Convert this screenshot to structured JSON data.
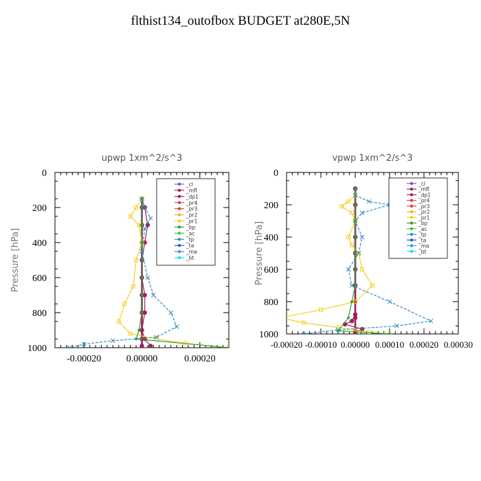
{
  "figure_title": "flthist134_outofbox  BUDGET at280E,5N",
  "colors": {
    "_cl": "#7f4fbf",
    "_mfl": "#a0205f",
    "_dp1": "#a0205f",
    "_pr4": "#e0404f",
    "_pr3": "#e0404f",
    "_pr2": "#f0b030",
    "_pr1": "#f5d020",
    "_bp": "#30a030",
    "_ac": "#30d030",
    "_tp": "#2f8fbf",
    "_ta": "#3050e0",
    "_ma": "#30a0d0",
    "_bt": "#20e0e0"
  },
  "chart_data": [
    {
      "type": "line",
      "title": "upwp   1xm^2/s^3",
      "ylabel": "Pressure [hPa]",
      "xlabel": "",
      "ylim": [
        1000,
        0
      ],
      "xlim": [
        -0.0003,
        0.0003
      ],
      "yticks": [
        "0",
        "200",
        "400",
        "600",
        "800",
        "1000"
      ],
      "xticks": [
        "-0.00020",
        "0.00000",
        "0.00020"
      ],
      "legend": [
        "_cl",
        "_mfl",
        "_dp1",
        "_pr4",
        "_pr3",
        "_pr2",
        "_pr1",
        "_bp",
        "_ac",
        "_tp",
        "_ta",
        "_ma",
        "_bt"
      ],
      "legend_position": "top-right",
      "series": [
        {
          "name": "_cl",
          "x": [
            0,
            0,
            0,
            0,
            0,
            0,
            0,
            0,
            0,
            0,
            0
          ],
          "y": [
            150,
            200,
            300,
            400,
            500,
            600,
            700,
            800,
            900,
            950,
            990
          ]
        },
        {
          "name": "_mfl",
          "x": [
            0,
            0,
            0,
            0,
            0,
            0,
            0,
            0,
            0,
            0,
            0
          ],
          "y": [
            150,
            200,
            300,
            400,
            500,
            600,
            700,
            800,
            900,
            950,
            990
          ]
        },
        {
          "name": "_dp1",
          "x": [
            0,
            1e-05,
            2e-05,
            1e-05,
            0,
            0,
            1e-05,
            1e-05,
            0,
            1e-05,
            3e-05
          ],
          "y": [
            150,
            200,
            300,
            400,
            500,
            600,
            700,
            800,
            900,
            950,
            990
          ]
        },
        {
          "name": "_pr1",
          "x": [
            0,
            -2e-05,
            -4e-05,
            -1e-05,
            0,
            -2e-05,
            -3e-05,
            -6e-05,
            -8e-05,
            -4e-05,
            5e-05,
            0.00015,
            0.0003
          ],
          "y": [
            150,
            200,
            250,
            300,
            400,
            500,
            650,
            750,
            850,
            920,
            950,
            975,
            1000
          ]
        },
        {
          "name": "_bp",
          "x": [
            0,
            0,
            0,
            0,
            0,
            0,
            0,
            0,
            -1e-05,
            -2e-05,
            0.0003
          ],
          "y": [
            150,
            200,
            300,
            400,
            500,
            600,
            700,
            800,
            900,
            950,
            1000
          ]
        },
        {
          "name": "_tp",
          "x": [
            0,
            1e-05,
            3e-05,
            1e-05,
            0,
            2e-05,
            4e-05,
            0.0001,
            0.00012,
            5e-05,
            -0.0001,
            -0.0002,
            -0.00025
          ],
          "y": [
            150,
            200,
            260,
            320,
            450,
            600,
            700,
            800,
            880,
            940,
            960,
            980,
            1000
          ]
        }
      ]
    },
    {
      "type": "line",
      "title": "vpwp   1xm^2/s^3",
      "ylabel": "Pressure [hPa]",
      "xlabel": "",
      "ylim": [
        1000,
        0
      ],
      "xlim": [
        -0.0002,
        0.0003
      ],
      "yticks": [
        "0",
        "200",
        "400",
        "600",
        "800",
        "1000"
      ],
      "xticks": [
        "-0.00020",
        "-0.00010",
        "0.00000",
        "0.00010",
        "0.00020",
        "0.00030"
      ],
      "legend": [
        "_cl",
        "_mfl",
        "_dp1",
        "_pr4",
        "_pr3",
        "_pr2",
        "_pr1",
        "_bp",
        "_ac",
        "_tp",
        "_ta",
        "_ma",
        "_bt"
      ],
      "legend_position": "top-right",
      "series": [
        {
          "name": "_cl",
          "x": [
            0,
            0,
            0,
            0,
            0,
            0,
            0,
            0,
            0,
            0
          ],
          "y": [
            100,
            200,
            300,
            400,
            500,
            600,
            700,
            800,
            900,
            990
          ]
        },
        {
          "name": "_mfl",
          "x": [
            0,
            0,
            0,
            0,
            0,
            0,
            0,
            0,
            0,
            0
          ],
          "y": [
            100,
            200,
            300,
            400,
            500,
            600,
            700,
            800,
            900,
            990
          ]
        },
        {
          "name": "_dp1",
          "x": [
            0,
            0,
            0,
            0,
            0,
            0,
            0,
            0,
            0,
            -1e-05,
            -3e-05,
            2e-05,
            0
          ],
          "y": [
            100,
            200,
            300,
            400,
            500,
            600,
            700,
            800,
            880,
            920,
            940,
            970,
            990
          ]
        },
        {
          "name": "_pr1",
          "x": [
            0,
            -2e-05,
            -4e-05,
            -1e-05,
            0,
            -2e-05,
            -1e-05,
            1e-05,
            2e-05,
            5e-05,
            0,
            -0.0001,
            -0.00022,
            -0.00015,
            -5e-05,
            0,
            4e-05,
            0.0001
          ],
          "y": [
            140,
            180,
            210,
            250,
            300,
            400,
            450,
            500,
            600,
            700,
            800,
            850,
            900,
            930,
            960,
            975,
            990,
            1000
          ]
        },
        {
          "name": "_bp",
          "x": [
            0,
            0,
            0,
            0,
            0,
            0,
            0,
            -1e-05,
            -2e-05,
            -5e-05,
            0.0001
          ],
          "y": [
            100,
            200,
            300,
            400,
            500,
            600,
            700,
            800,
            900,
            980,
            1000
          ]
        },
        {
          "name": "_tp",
          "x": [
            0,
            4e-05,
            0.0001,
            2e-05,
            0,
            2e-05,
            1e-05,
            -2e-05,
            -1e-05,
            0.0001,
            0.00022,
            0.00012,
            -5e-05,
            -0.00015
          ],
          "y": [
            140,
            180,
            200,
            250,
            300,
            400,
            500,
            600,
            700,
            800,
            920,
            950,
            975,
            1000
          ]
        }
      ]
    }
  ]
}
